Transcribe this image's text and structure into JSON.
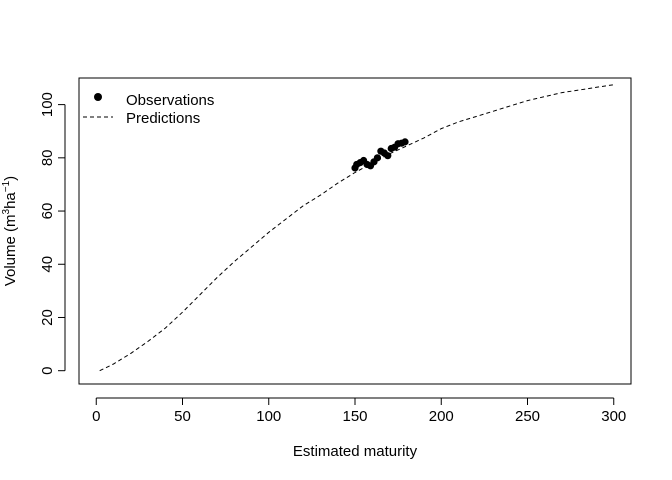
{
  "chart_data": {
    "type": "line",
    "xlabel": "Estimated maturity",
    "ylabel": {
      "prefix": "Volume (m",
      "sup1": "3",
      "middle": "ha",
      "sup2": "−1",
      "suffix": ")"
    },
    "xlim": [
      -10,
      310
    ],
    "ylim": [
      -5,
      110
    ],
    "x_ticks": [
      0,
      50,
      100,
      150,
      200,
      250,
      300
    ],
    "y_ticks": [
      0,
      20,
      40,
      60,
      80,
      100
    ],
    "grid": false,
    "legend": {
      "placement": "top-left",
      "entries": [
        {
          "label": "Observations",
          "marker": "filled-circle"
        },
        {
          "label": "Predictions",
          "marker": "dashed-line"
        }
      ]
    },
    "series": [
      {
        "name": "Observations",
        "kind": "points",
        "x": [
          150,
          151,
          153,
          155,
          157,
          159,
          161,
          163,
          165,
          167,
          169,
          171,
          173,
          175,
          177,
          179
        ],
        "y": [
          76.2,
          77.5,
          78.2,
          79.0,
          77.5,
          77.0,
          78.5,
          80.0,
          82.5,
          81.8,
          80.8,
          83.5,
          84.0,
          85.3,
          85.5,
          86.0
        ]
      },
      {
        "name": "Predictions",
        "kind": "dashed-line",
        "x": [
          2,
          10,
          20,
          30,
          40,
          50,
          60,
          70,
          80,
          90,
          100,
          110,
          120,
          130,
          140,
          150,
          160,
          170,
          180,
          190,
          200,
          210,
          220,
          230,
          240,
          250,
          260,
          270,
          280,
          290,
          300
        ],
        "y": [
          0,
          2.5,
          6.5,
          11,
          16,
          22,
          28.5,
          35,
          41,
          46.5,
          52,
          57,
          62,
          66,
          70.5,
          74.5,
          78,
          81.5,
          84.5,
          87.5,
          91,
          93.5,
          95.5,
          97.5,
          99.5,
          101.5,
          103,
          104.5,
          105.5,
          106.5,
          107.5
        ]
      }
    ]
  }
}
